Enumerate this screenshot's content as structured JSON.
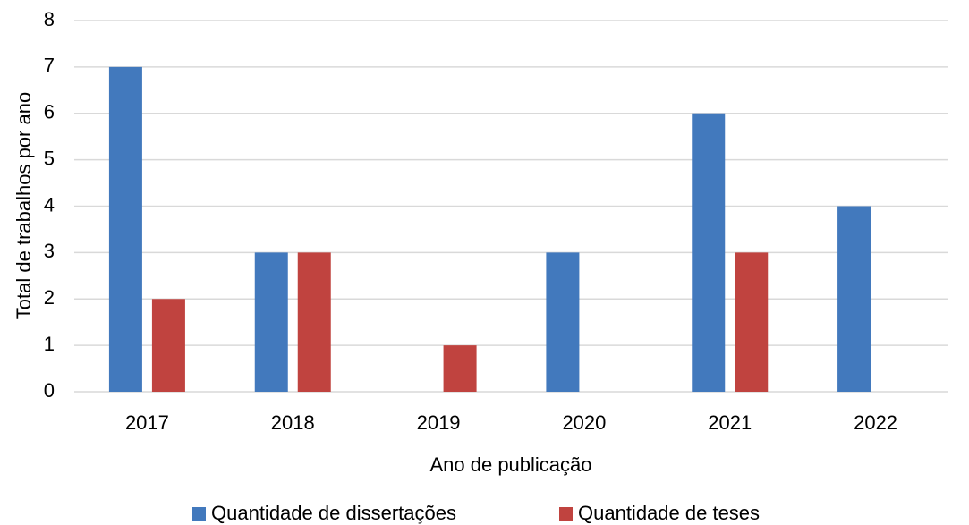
{
  "chart_data": {
    "type": "bar",
    "x_label": "Ano de publicação",
    "y_label": "Total de trabalhos por ano",
    "categories": [
      "2017",
      "2018",
      "2019",
      "2020",
      "2021",
      "2022"
    ],
    "series": [
      {
        "name": "Quantidade de dissertações",
        "color": "#4279bd",
        "values": [
          7,
          3,
          0,
          3,
          6,
          4
        ]
      },
      {
        "name": "Quantidade de teses",
        "color": "#c0433f",
        "values": [
          2,
          3,
          1,
          0,
          3,
          0
        ]
      }
    ],
    "ylim": [
      0,
      8
    ],
    "yticks": [
      0,
      1,
      2,
      3,
      4,
      5,
      6,
      7,
      8
    ],
    "grid": true,
    "legend": "bottom"
  }
}
